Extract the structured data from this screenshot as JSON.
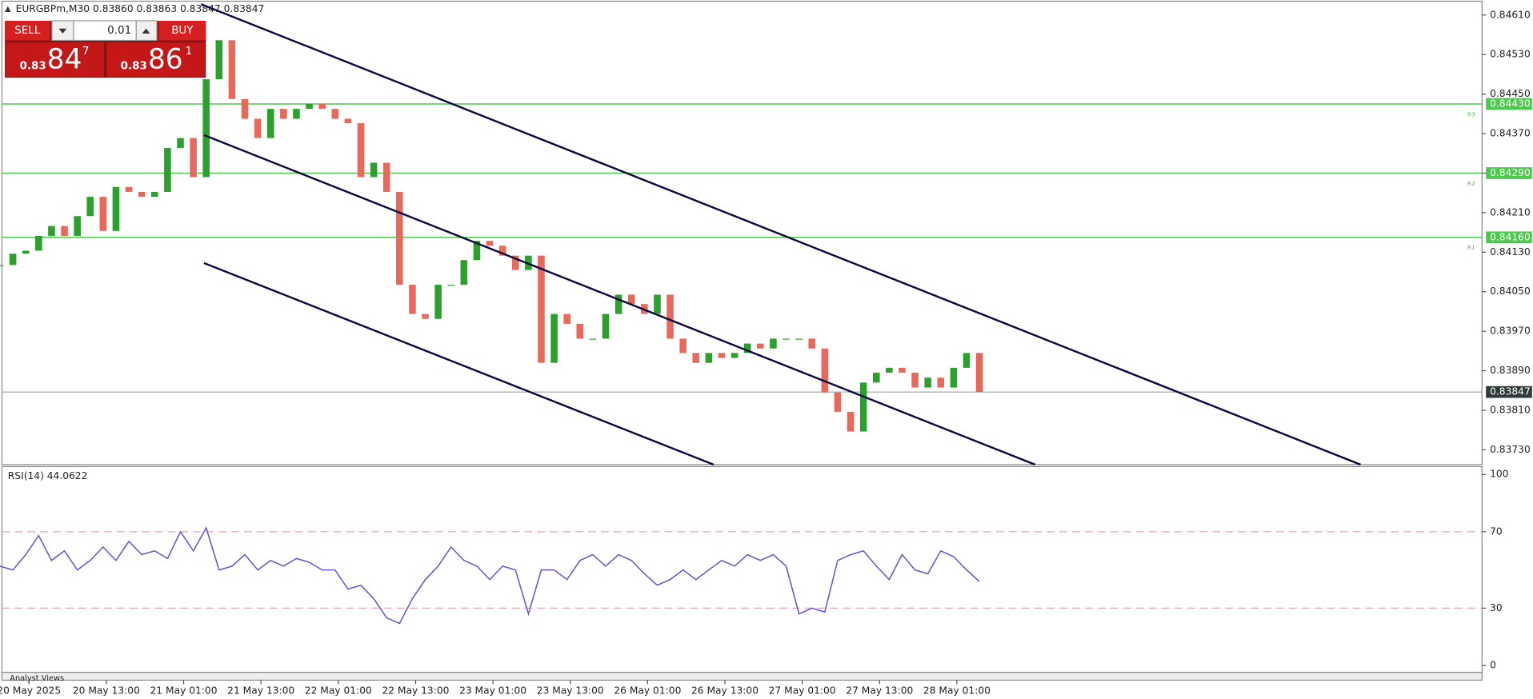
{
  "header": {
    "symbol": "EURGBPm,M30 0.83860 0.83863 0.83847 0.83847"
  },
  "trade_panel": {
    "sell": "SELL",
    "buy": "BUY",
    "lot": "0.01",
    "bid": {
      "prefix": "0.83",
      "big": "84",
      "sup": "7"
    },
    "ask": {
      "prefix": "0.83",
      "big": "86",
      "sup": "1"
    }
  },
  "footer": "Analyst Views",
  "chart_data": [
    {
      "type": "candlestick",
      "up_color": "#2ca02c",
      "down_color": "#e8695c",
      "x": [
        0,
        4,
        8,
        12,
        16,
        20,
        24,
        28,
        32,
        36,
        40,
        44,
        48,
        52,
        56,
        60,
        64,
        68,
        72,
        76,
        80,
        84,
        88,
        92,
        96,
        100,
        104,
        108,
        112,
        116,
        120,
        124,
        128,
        132,
        136,
        140,
        144,
        148,
        152,
        156,
        160,
        164,
        168,
        172,
        176,
        180,
        184,
        188,
        192,
        196,
        200,
        204,
        208,
        212,
        216,
        220,
        224,
        228,
        232,
        236,
        240,
        244,
        248,
        252,
        256,
        260,
        264,
        268,
        272,
        276,
        280,
        284,
        288,
        292,
        296,
        300,
        304
      ],
      "close": [
        0.84104,
        0.84127,
        0.84133,
        0.84163,
        0.84183,
        0.84163,
        0.84203,
        0.84242,
        0.84173,
        0.84262,
        0.84252,
        0.84242,
        0.84252,
        0.84341,
        0.84361,
        0.84282,
        0.8448,
        0.84559,
        0.8444,
        0.844,
        0.84361,
        0.8442,
        0.844,
        0.8442,
        0.8443,
        0.8442,
        0.844,
        0.84391,
        0.84282,
        0.84311,
        0.84252,
        0.84064,
        0.84005,
        0.83995,
        0.84064,
        0.84064,
        0.84114,
        0.84153,
        0.84143,
        0.84123,
        0.84094,
        0.84123,
        0.83906,
        0.84005,
        0.83985,
        0.83955,
        0.83955,
        0.84005,
        0.84044,
        0.84025,
        0.84005,
        0.84044,
        0.83955,
        0.83926,
        0.83906,
        0.83926,
        0.83916,
        0.83926,
        0.83945,
        0.83935,
        0.83955,
        0.83955,
        0.83955,
        0.83935,
        0.83846,
        0.83807,
        0.83767,
        0.83866,
        0.83886,
        0.83896,
        0.83886,
        0.83856,
        0.83876,
        0.83856,
        0.83896,
        0.83926,
        0.83847
      ],
      "xlim": [
        0,
        460
      ],
      "ylim": [
        0.837,
        0.84638
      ],
      "yticks": [
        {
          "value": 0.8461,
          "label": "0.84610"
        },
        {
          "value": 0.8453,
          "label": "0.84530"
        },
        {
          "value": 0.8445,
          "label": "0.84450"
        },
        {
          "value": 0.8437,
          "label": "0.84370"
        },
        {
          "value": 0.8429,
          "label": "0.84290"
        },
        {
          "value": 0.8421,
          "label": "0.84210"
        },
        {
          "value": 0.8413,
          "label": "0.84130"
        },
        {
          "value": 0.8405,
          "label": "0.84050"
        },
        {
          "value": 0.8397,
          "label": "0.83970"
        },
        {
          "value": 0.8389,
          "label": "0.83890"
        },
        {
          "value": 0.8381,
          "label": "0.83810"
        },
        {
          "value": 0.8373,
          "label": "0.83730"
        }
      ],
      "xticks": [
        {
          "value": 9,
          "label": "20 May 2025"
        },
        {
          "value": 33,
          "label": "20 May 13:00"
        },
        {
          "value": 57,
          "label": "21 May 01:00"
        },
        {
          "value": 81,
          "label": "21 May 13:00"
        },
        {
          "value": 105,
          "label": "22 May 01:00"
        },
        {
          "value": 129,
          "label": "22 May 13:00"
        },
        {
          "value": 153,
          "label": "23 May 01:00"
        },
        {
          "value": 177,
          "label": "23 May 13:00"
        },
        {
          "value": 201,
          "label": "26 May 01:00"
        },
        {
          "value": 225,
          "label": "26 May 13:00"
        },
        {
          "value": 249,
          "label": "27 May 01:00"
        },
        {
          "value": 273,
          "label": "27 May 13:00"
        },
        {
          "value": 297,
          "label": "28 May 01:00"
        }
      ],
      "levels": [
        {
          "value": 0.8443,
          "label": "0.84430",
          "tag": "R3",
          "color": "#4cc94c"
        },
        {
          "value": 0.8429,
          "label": "0.84290",
          "tag": "R2",
          "color": "#4cc94c"
        },
        {
          "value": 0.8416,
          "label": "0.84160",
          "tag": "R1",
          "color": "#4cc94c"
        }
      ],
      "current": {
        "value": 0.83847,
        "label": "0.83847",
        "color": "#2f3b3b"
      },
      "trendline_color": "#0c0c40",
      "trendlines": [
        {
          "x": [
            62.4,
            422.3
          ],
          "y": [
            0.84632,
            0.837
          ]
        },
        {
          "x": [
            63.3,
            321.3
          ],
          "y": [
            0.84367,
            0.837
          ]
        },
        {
          "x": [
            63.3,
            221.5
          ],
          "y": [
            0.84108,
            0.837
          ]
        }
      ]
    },
    {
      "type": "line",
      "title": "RSI(14) 44.0622",
      "color": "#6a5acd",
      "x": [
        0,
        4,
        8,
        12,
        16,
        20,
        24,
        28,
        32,
        36,
        40,
        44,
        48,
        52,
        56,
        60,
        64,
        68,
        72,
        76,
        80,
        84,
        88,
        92,
        96,
        100,
        104,
        108,
        112,
        116,
        120,
        124,
        128,
        132,
        136,
        140,
        144,
        148,
        152,
        156,
        160,
        164,
        168,
        172,
        176,
        180,
        184,
        188,
        192,
        196,
        200,
        204,
        208,
        212,
        216,
        220,
        224,
        228,
        232,
        236,
        240,
        244,
        248,
        252,
        256,
        260,
        264,
        268,
        272,
        276,
        280,
        284,
        288,
        292,
        296,
        300,
        304
      ],
      "values": [
        52,
        50,
        58,
        68,
        55,
        60,
        50,
        55,
        62,
        55,
        65,
        58,
        60,
        56,
        70,
        60,
        72,
        50,
        52,
        58,
        50,
        55,
        52,
        56,
        54,
        50,
        50,
        40,
        42,
        35,
        25,
        22,
        35,
        45,
        52,
        62,
        55,
        52,
        45,
        52,
        50,
        27,
        50,
        50,
        45,
        55,
        58,
        52,
        58,
        55,
        48,
        42,
        45,
        50,
        45,
        50,
        55,
        52,
        58,
        55,
        58,
        52,
        27,
        30,
        28,
        55,
        58,
        60,
        52,
        45,
        58,
        50,
        48,
        60,
        57,
        50,
        44
      ],
      "xlim": [
        0,
        460
      ],
      "ylim": [
        0,
        100
      ],
      "yticks": [
        100,
        70,
        30,
        0
      ],
      "levels": [
        70,
        30
      ],
      "level_color": "#d9a9c9"
    }
  ]
}
